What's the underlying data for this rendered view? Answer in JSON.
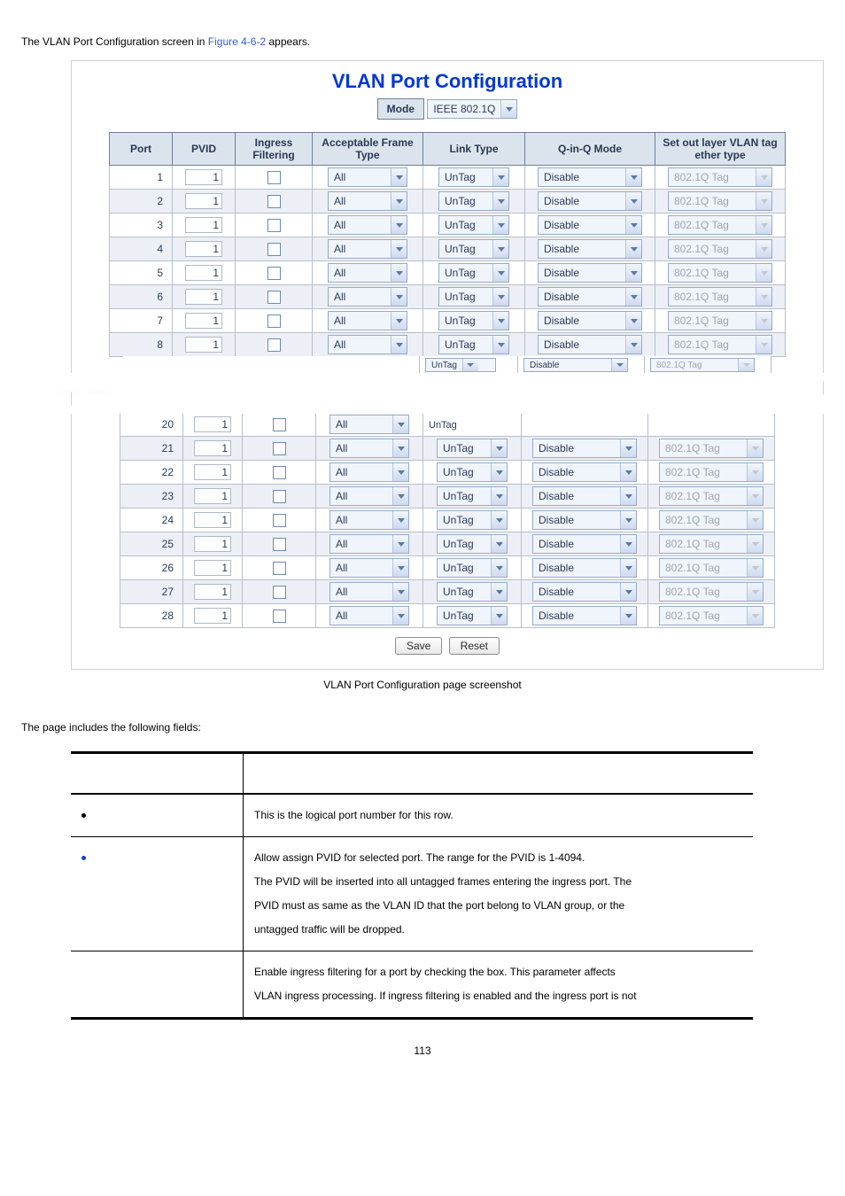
{
  "intro": {
    "text_a": "The VLAN Port Configuration screen in ",
    "figref": "Figure 4-6-2",
    "text_b": " appears."
  },
  "panel": {
    "title": "VLAN Port Configuration",
    "mode_label": "Mode",
    "mode_value": "IEEE 802.1Q",
    "headers": {
      "port": "Port",
      "pvid": "PVID",
      "ingress": "Ingress Filtering",
      "frame": "Acceptable Frame Type",
      "link": "Link Type",
      "qinq": "Q-in-Q Mode",
      "outer": "Set out layer VLAN tag ether type"
    },
    "frame_value": "All",
    "link_value": "UnTag",
    "qinq_value": "Disable",
    "outer_value": "802.1Q Tag",
    "pvid_value": "1",
    "top_ports": [
      "1",
      "2",
      "3",
      "4",
      "5",
      "6",
      "7",
      "8"
    ],
    "bottom_ports": [
      "20",
      "21",
      "22",
      "23",
      "24",
      "25",
      "26",
      "27",
      "28"
    ],
    "save_label": "Save",
    "reset_label": "Reset"
  },
  "caption": "VLAN Port Configuration page screenshot",
  "subhead": "The page includes the following fields:",
  "fields": {
    "row1": "This is the logical port number for this row.",
    "row2_l1": "Allow assign PVID for selected port. The range for the PVID is 1-4094.",
    "row2_l2": "The PVID will be inserted into all untagged frames entering the ingress port. The",
    "row2_l3": "PVID must as same as the VLAN ID that the port belong to VLAN group, or the",
    "row2_l4": "untagged traffic will be dropped.",
    "row3_l1": "Enable ingress filtering for a port by checking the box. This parameter affects",
    "row3_l2": "VLAN ingress processing. If ingress filtering is enabled and the ingress port is not"
  },
  "page_number": "113"
}
